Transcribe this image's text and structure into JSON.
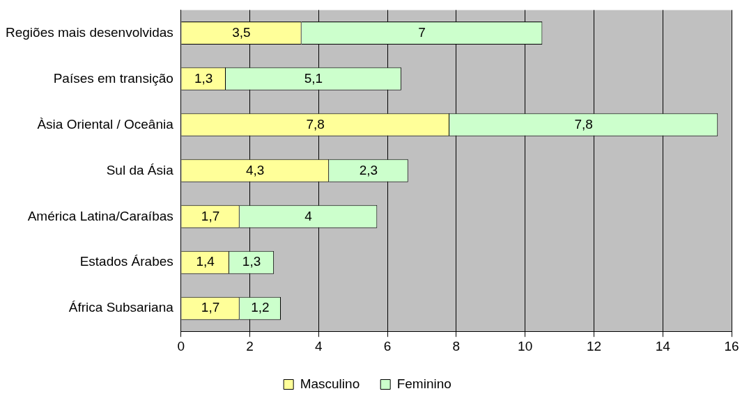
{
  "chart_data": {
    "type": "bar",
    "orientation": "horizontal",
    "stacked": true,
    "categories": [
      "Regiões mais desenvolvidas",
      "Países em transição",
      "Àsia Oriental / Oceânia",
      "Sul da Ásia",
      "América Latina/Caraíbas",
      "Estados Árabes",
      "África Subsariana"
    ],
    "series": [
      {
        "name": "Masculino",
        "color": "#ffff99",
        "values": [
          3.5,
          1.3,
          7.8,
          4.3,
          1.7,
          1.4,
          1.7
        ],
        "value_labels": [
          "3,5",
          "1,3",
          "7,8",
          "4,3",
          "1,7",
          "1,4",
          "1,7"
        ]
      },
      {
        "name": "Feminino",
        "color": "#ccffcc",
        "values": [
          7,
          5.1,
          7.8,
          2.3,
          4,
          1.3,
          1.2
        ],
        "value_labels": [
          "7",
          "5,1",
          "7,8",
          "2,3",
          "4",
          "1,3",
          "1,2"
        ]
      }
    ],
    "xlim": [
      0,
      16
    ],
    "xticks": [
      0,
      2,
      4,
      6,
      8,
      10,
      12,
      14,
      16
    ],
    "grid": "x",
    "legend": "bottom"
  }
}
